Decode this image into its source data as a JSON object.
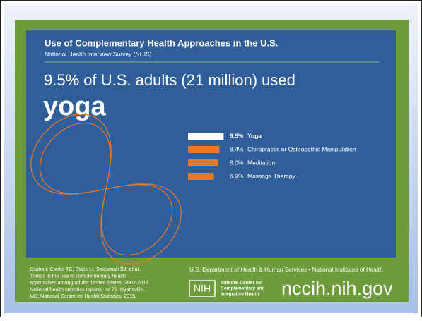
{
  "header": {
    "title": "Use of Complementary Health Approaches in the U.S.",
    "subtitle": "National Health Interview Survey (NHIS)"
  },
  "headline": {
    "line": "9.5% of U.S. adults (21 million) used",
    "emphasis": "yoga"
  },
  "chart_data": {
    "type": "bar",
    "orientation": "horizontal",
    "categories": [
      "Yoga",
      "Chiropractic or Osteopathic Manipulation",
      "Meditation",
      "Massage Therapy"
    ],
    "values": [
      9.5,
      8.4,
      8.0,
      6.9
    ],
    "value_labels": [
      "9.5%",
      "8.4%",
      "8.0%",
      "6.9%"
    ],
    "colors": [
      "#ffffff",
      "#e8782a",
      "#e8782a",
      "#e8782a"
    ]
  },
  "footer": {
    "citation": [
      "Citation: Clarke TC, Black LI, Stussman BJ, et al.",
      "Trends in the use of complementary health",
      "approaches among adults: United States, 2002-2012.",
      "National health statistics reports; no 79. Hyattsville,",
      "MD: National Center for Health Statistics. 2015."
    ],
    "agencies": "U.S. Department of Health & Human Services • National Institutes of Health",
    "logo": "NIH",
    "center": [
      "National Center for",
      "Complementary and",
      "Integrative Health"
    ],
    "url": "nccih.nih.gov"
  }
}
